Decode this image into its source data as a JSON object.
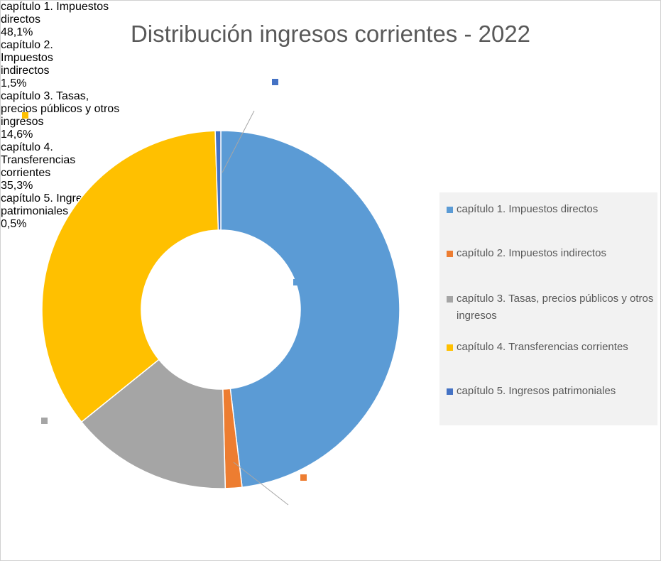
{
  "chart_data": {
    "type": "donut",
    "title": "Distribución ingresos corrientes - 2022",
    "categories": [
      "capítulo 1. Impuestos directos",
      "capítulo 2. Impuestos indirectos",
      "capítulo 3. Tasas, precios públicos y otros ingresos",
      "capítulo 4. Transferencias corrientes",
      "capítulo 5. Ingresos patrimoniales"
    ],
    "values": [
      48.1,
      1.5,
      14.6,
      35.3,
      0.5
    ],
    "value_labels": [
      "48,1%",
      "1,5%",
      "14,6%",
      "35,3%",
      "0,5%"
    ],
    "colors": [
      "#5b9bd5",
      "#ed7d31",
      "#a5a5a5",
      "#ffc000",
      "#4472c4"
    ],
    "legend": "right"
  }
}
